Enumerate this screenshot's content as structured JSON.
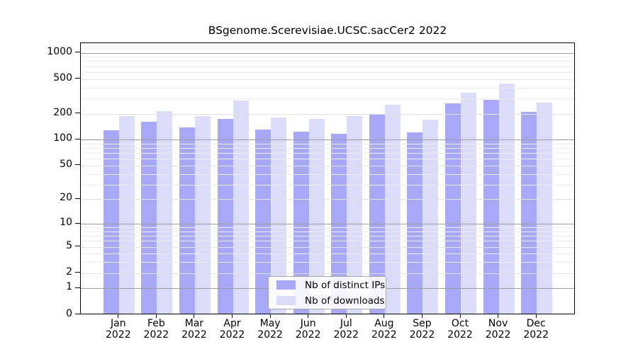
{
  "chart_data": {
    "type": "bar",
    "title": "BSgenome.Scerevisiae.UCSC.sacCer2 2022",
    "categories": [
      "Jan",
      "Feb",
      "Mar",
      "Apr",
      "May",
      "Jun",
      "Jul",
      "Aug",
      "Sep",
      "Oct",
      "Nov",
      "Dec"
    ],
    "category_year": "2022",
    "series": [
      {
        "name": "Nb of distinct IPs",
        "color": "#a8a8f8",
        "values": [
          129,
          162,
          138,
          175,
          131,
          123,
          116,
          194,
          122,
          262,
          286,
          208
        ]
      },
      {
        "name": "Nb of downloads",
        "color": "#dbdbfa",
        "values": [
          188,
          212,
          186,
          285,
          179,
          173,
          186,
          254,
          170,
          349,
          440,
          266
        ]
      }
    ],
    "y_axis": {
      "scale": "log1p",
      "ticks": [
        0,
        1,
        2,
        5,
        10,
        20,
        50,
        100,
        200,
        500,
        1000
      ],
      "minor_ticks": [
        3,
        4,
        6,
        7,
        8,
        9,
        30,
        40,
        60,
        70,
        80,
        90,
        300,
        400,
        600,
        700,
        800,
        900,
        1100,
        1200
      ],
      "decade_ticks": [
        1,
        10,
        100,
        1000
      ]
    },
    "ylim": [
      0,
      1275
    ],
    "grid": true,
    "legend_position": "bottom-center",
    "colors": {
      "axis": "#000000",
      "text": "#000000",
      "grid_major": "#e2e2e2",
      "grid_minor": "#eeeeee",
      "grid_decade": "#9e9e9e",
      "legend_border": "#a9a9a9"
    }
  }
}
